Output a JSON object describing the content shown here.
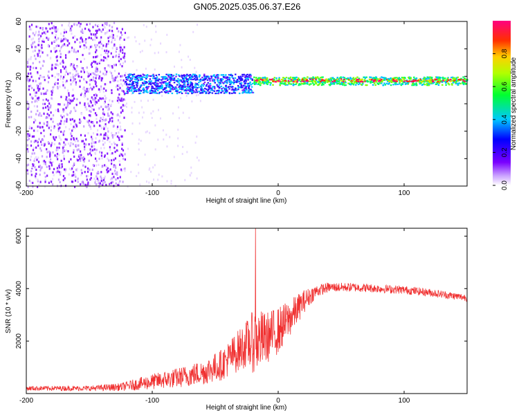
{
  "figure": {
    "title": "GN05.2025.035.06.37.E26"
  },
  "chart_data": [
    {
      "type": "heatmap",
      "xlabel": "Height of straight line (km)",
      "ylabel": "Frequency (Hz)",
      "xlim": [
        -200,
        150
      ],
      "ylim": [
        -60,
        60
      ],
      "xticks": [
        -200,
        -100,
        0,
        100
      ],
      "yticks": [
        60,
        40,
        20,
        0,
        -20,
        -40,
        -60
      ],
      "colorbar": {
        "label": "Normalized spectral amplitude",
        "range": [
          0,
          1
        ],
        "ticks": [
          0.0,
          0.2,
          0.4,
          0.6,
          0.8
        ],
        "colormap": "hsv-rainbow (white-violet to magenta)"
      },
      "regions": [
        {
          "x_range": [
            -200,
            -122
          ],
          "freq_range": [
            -60,
            60
          ],
          "amplitude": 0.15,
          "pattern": "scattered speckle"
        },
        {
          "x_range": [
            -122,
            -20
          ],
          "freq_center": 15,
          "freq_halfwidth": 7,
          "amplitude": 0.3,
          "pattern": "broad band"
        },
        {
          "x_range": [
            -20,
            150
          ],
          "freq_center": 17,
          "freq_halfwidth": 3,
          "amplitude": 0.5,
          "pattern": "narrow band"
        },
        {
          "x_range": [
            -20,
            150
          ],
          "freq_center": 17.5,
          "freq_halfwidth": 1,
          "amplitude": 0.85,
          "pattern": "band core"
        }
      ]
    },
    {
      "type": "line",
      "xlabel": "Height of straight line (km)",
      "ylabel": "SNR (10 * v/v)",
      "xlim": [
        -200,
        150
      ],
      "ylim": [
        0,
        6300
      ],
      "xticks": [
        -200,
        -100,
        0,
        100
      ],
      "yticks": [
        2000,
        4000,
        6000
      ],
      "color": "#f03030",
      "envelope": {
        "x": [
          -200,
          -150,
          -125,
          -100,
          -80,
          -60,
          -45,
          -35,
          -25,
          -18,
          -10,
          0,
          10,
          20,
          30,
          40,
          60,
          80,
          100,
          120,
          150
        ],
        "mean": [
          200,
          200,
          250,
          450,
          600,
          800,
          1100,
          1500,
          1900,
          2000,
          2100,
          2400,
          2900,
          3500,
          3900,
          4050,
          4050,
          4000,
          3950,
          3850,
          3650
        ],
        "noise": [
          90,
          100,
          150,
          300,
          380,
          480,
          600,
          750,
          900,
          1300,
          1000,
          900,
          700,
          450,
          250,
          180,
          170,
          160,
          160,
          150,
          140
        ]
      },
      "spike": {
        "x": -18,
        "y": 6300
      }
    }
  ]
}
